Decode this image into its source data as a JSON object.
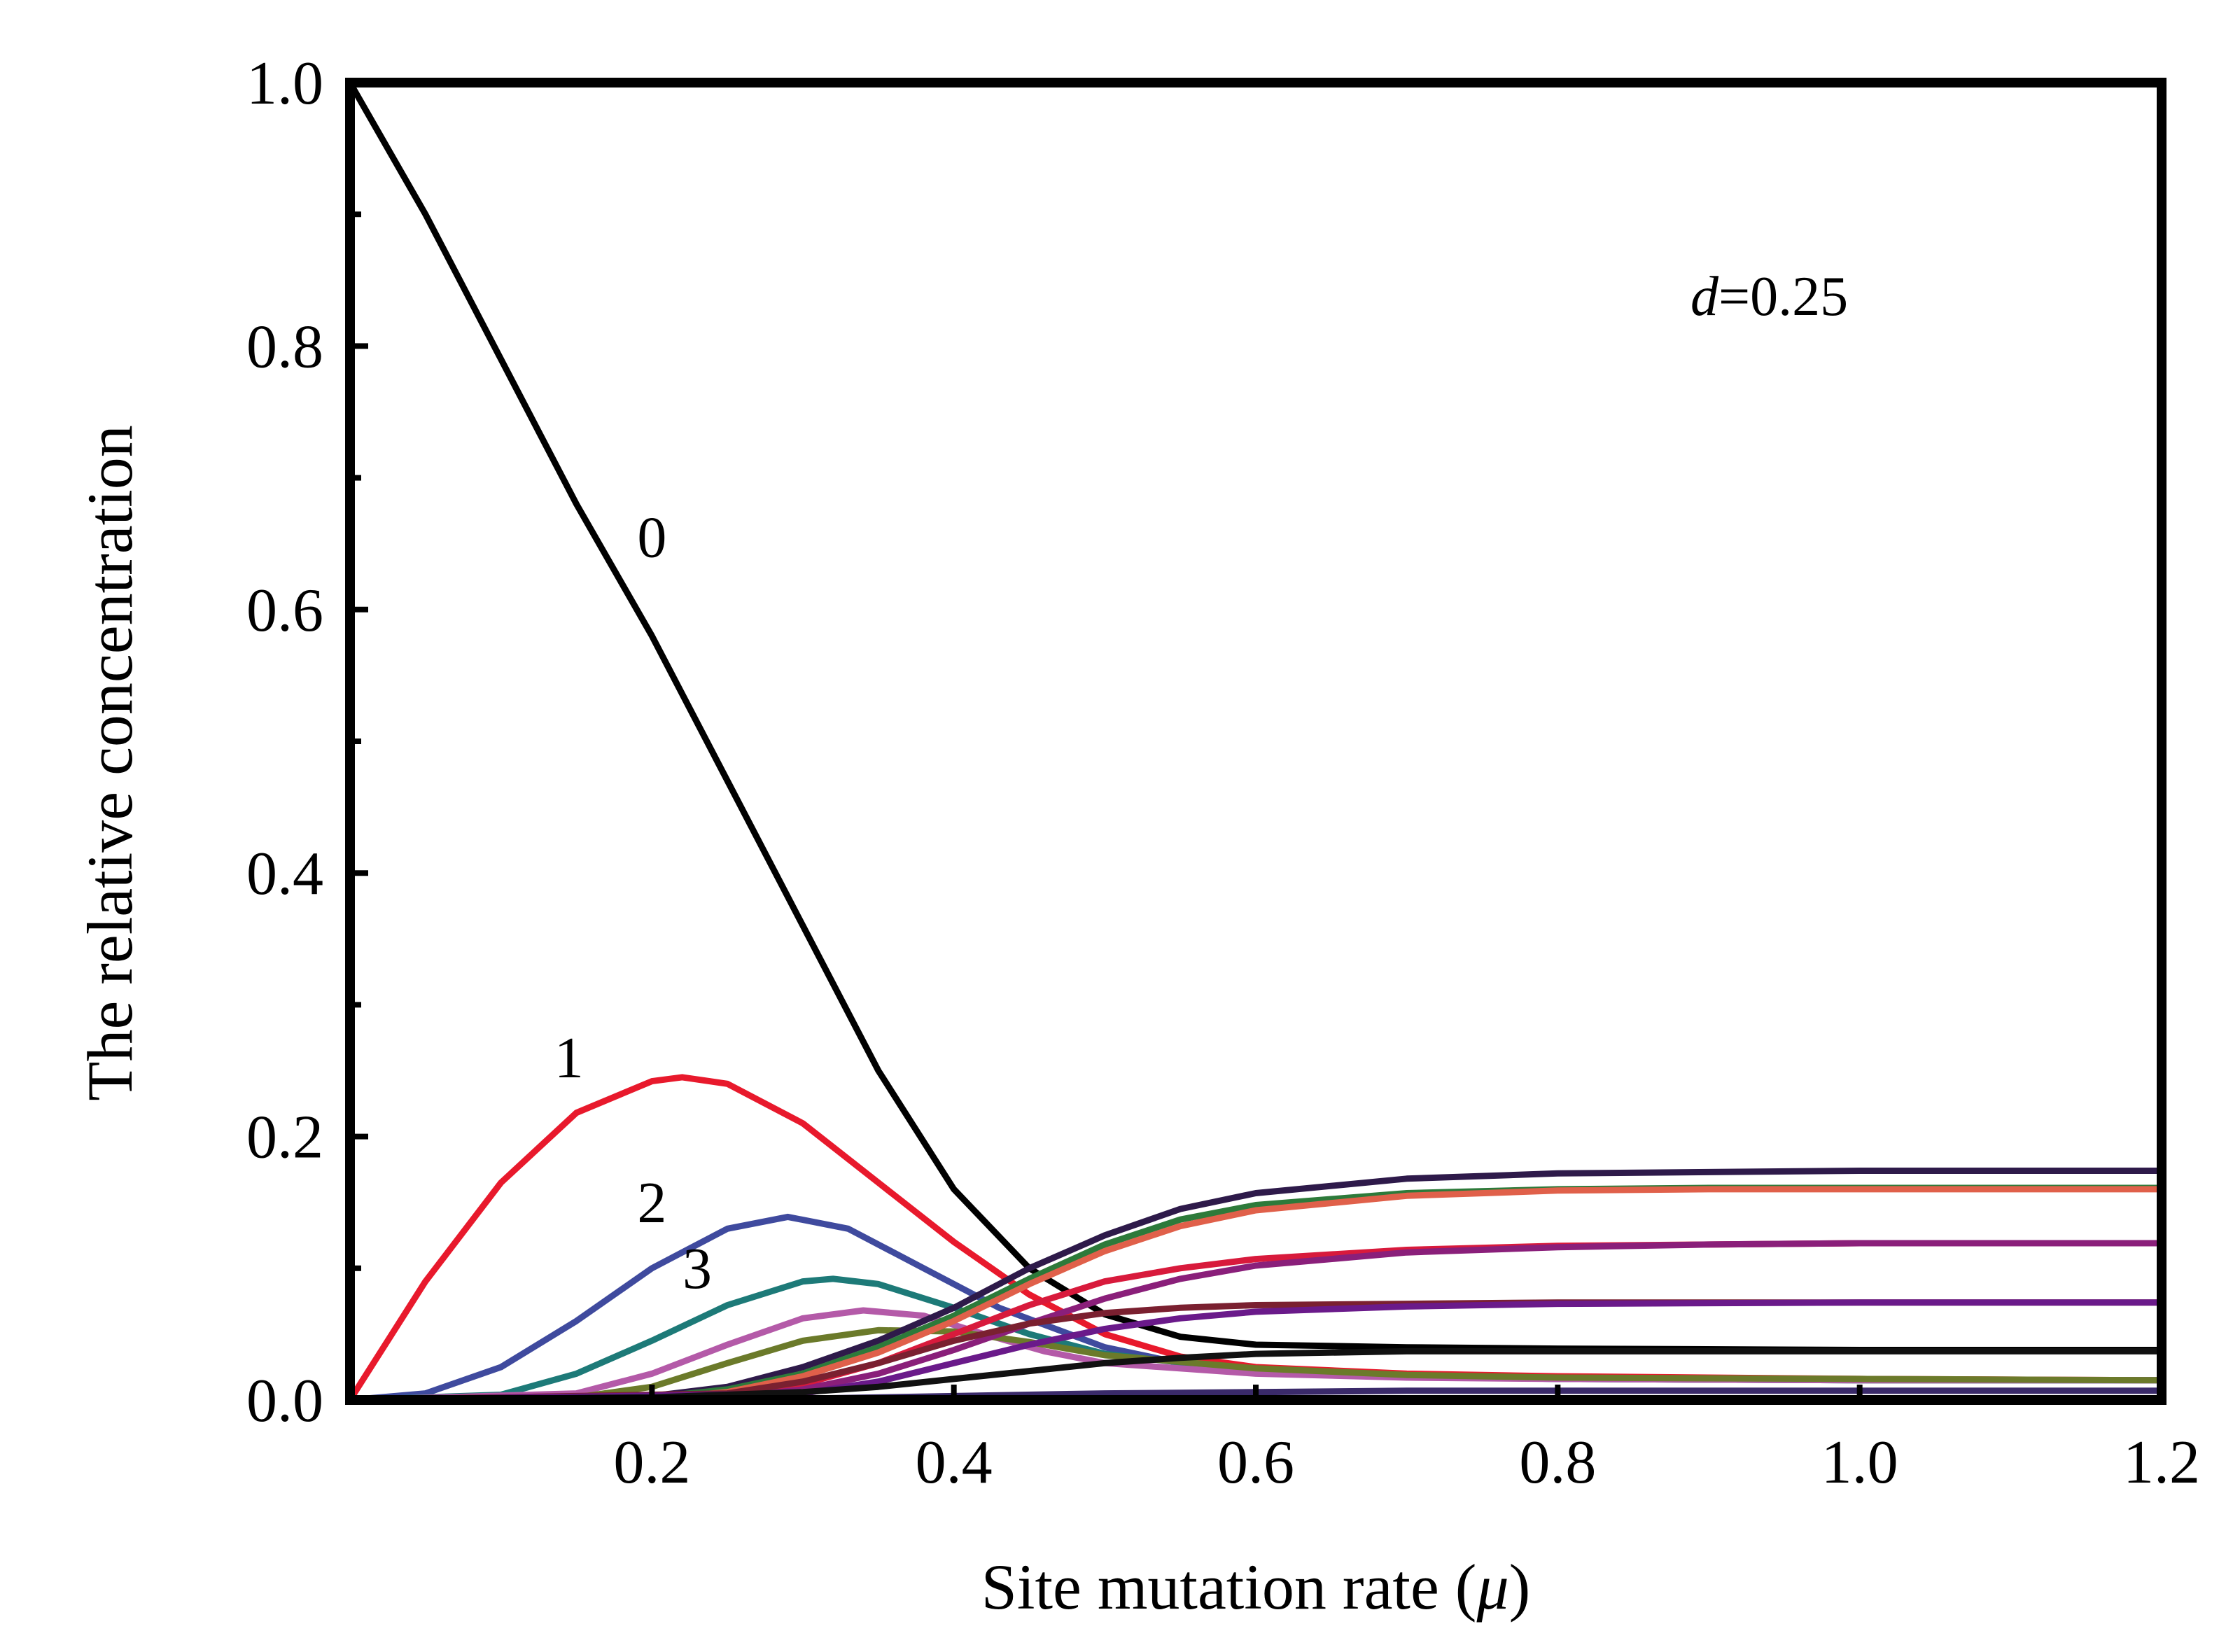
{
  "chart_data": {
    "type": "line",
    "xlabel": "Site mutation rate (",
    "xlabel_symbol": "μ",
    "xlabel_close": ")",
    "ylabel": "The relative concentration",
    "xlim": [
      0.0,
      1.2
    ],
    "ylim": [
      0.0,
      1.0
    ],
    "x_ticks": [
      {
        "value": 0.2,
        "label": "0.2"
      },
      {
        "value": 0.4,
        "label": "0.4"
      },
      {
        "value": 0.6,
        "label": "0.6"
      },
      {
        "value": 0.8,
        "label": "0.8"
      },
      {
        "value": 1.0,
        "label": "1.0"
      },
      {
        "value": 1.2,
        "label": "1.2"
      }
    ],
    "y_ticks": [
      {
        "value": 0.0,
        "label": "0.0"
      },
      {
        "value": 0.2,
        "label": "0.2"
      },
      {
        "value": 0.4,
        "label": "0.4"
      },
      {
        "value": 0.6,
        "label": "0.6"
      },
      {
        "value": 0.8,
        "label": "0.8"
      },
      {
        "value": 1.0,
        "label": "1.0"
      }
    ],
    "y_minor_ticks": [
      0.1,
      0.3,
      0.5,
      0.7,
      0.9
    ],
    "grid": false,
    "annotation": {
      "symbol": "d",
      "text": "=0.25"
    },
    "curve_labels": [
      {
        "text": "0",
        "x": 0.2,
        "y": 0.64
      },
      {
        "text": "1",
        "x": 0.145,
        "y": 0.245
      },
      {
        "text": "2",
        "x": 0.2,
        "y": 0.135
      },
      {
        "text": "3",
        "x": 0.23,
        "y": 0.085
      }
    ],
    "series": [
      {
        "color": "#000000",
        "x": [
          0,
          0.05,
          0.1,
          0.15,
          0.2,
          0.25,
          0.3,
          0.35,
          0.4,
          0.45,
          0.5,
          0.55,
          0.6,
          0.7,
          0.8,
          1.0,
          1.2
        ],
        "y": [
          1.0,
          0.9,
          0.79,
          0.68,
          0.58,
          0.47,
          0.36,
          0.25,
          0.16,
          0.1,
          0.065,
          0.048,
          0.042,
          0.04,
          0.039,
          0.038,
          0.038
        ]
      },
      {
        "color": "#e8192c",
        "x": [
          0,
          0.05,
          0.1,
          0.15,
          0.2,
          0.22,
          0.25,
          0.3,
          0.35,
          0.4,
          0.45,
          0.5,
          0.55,
          0.6,
          0.7,
          0.8,
          1.0,
          1.2
        ],
        "y": [
          0,
          0.09,
          0.165,
          0.218,
          0.242,
          0.245,
          0.24,
          0.21,
          0.165,
          0.12,
          0.08,
          0.05,
          0.033,
          0.025,
          0.02,
          0.018,
          0.016,
          0.015
        ]
      },
      {
        "color": "#3f4a9e",
        "x": [
          0,
          0.05,
          0.1,
          0.15,
          0.2,
          0.25,
          0.29,
          0.33,
          0.38,
          0.43,
          0.5,
          0.55,
          0.6,
          0.7,
          0.8,
          1.0,
          1.2
        ],
        "y": [
          0,
          0.005,
          0.025,
          0.06,
          0.1,
          0.13,
          0.139,
          0.13,
          0.1,
          0.07,
          0.04,
          0.028,
          0.022,
          0.018,
          0.016,
          0.015,
          0.015
        ]
      },
      {
        "color": "#1d7a78",
        "x": [
          0,
          0.1,
          0.15,
          0.2,
          0.25,
          0.3,
          0.32,
          0.35,
          0.4,
          0.45,
          0.5,
          0.6,
          0.7,
          0.8,
          1.0,
          1.2
        ],
        "y": [
          0,
          0.004,
          0.02,
          0.045,
          0.072,
          0.09,
          0.092,
          0.088,
          0.07,
          0.05,
          0.035,
          0.022,
          0.018,
          0.016,
          0.015,
          0.015
        ]
      },
      {
        "color": "#b45aa8",
        "x": [
          0,
          0.15,
          0.2,
          0.25,
          0.3,
          0.34,
          0.38,
          0.42,
          0.46,
          0.5,
          0.6,
          0.7,
          0.8,
          1.0,
          1.2
        ],
        "y": [
          0,
          0.005,
          0.02,
          0.042,
          0.062,
          0.068,
          0.064,
          0.05,
          0.037,
          0.028,
          0.02,
          0.017,
          0.016,
          0.015,
          0.015
        ]
      },
      {
        "color": "#6b7a2a",
        "x": [
          0,
          0.15,
          0.2,
          0.25,
          0.3,
          0.35,
          0.4,
          0.45,
          0.5,
          0.6,
          0.7,
          0.8,
          1.0,
          1.2
        ],
        "y": [
          0,
          0.002,
          0.01,
          0.028,
          0.045,
          0.053,
          0.052,
          0.044,
          0.034,
          0.024,
          0.019,
          0.017,
          0.016,
          0.015
        ]
      },
      {
        "color": "#2e1a4a",
        "x": [
          0,
          0.2,
          0.25,
          0.3,
          0.35,
          0.4,
          0.45,
          0.5,
          0.55,
          0.6,
          0.7,
          0.8,
          0.9,
          1.0,
          1.2
        ],
        "y": [
          0,
          0.003,
          0.01,
          0.025,
          0.045,
          0.07,
          0.1,
          0.125,
          0.145,
          0.157,
          0.168,
          0.172,
          0.173,
          0.174,
          0.174
        ]
      },
      {
        "color": "#2d7a3a",
        "x": [
          0,
          0.2,
          0.25,
          0.3,
          0.35,
          0.4,
          0.45,
          0.5,
          0.55,
          0.6,
          0.7,
          0.8,
          0.9,
          1.0,
          1.2
        ],
        "y": [
          0,
          0.002,
          0.008,
          0.02,
          0.04,
          0.064,
          0.092,
          0.118,
          0.137,
          0.148,
          0.157,
          0.16,
          0.161,
          0.161,
          0.161
        ]
      },
      {
        "color": "#e0604a",
        "x": [
          0,
          0.2,
          0.25,
          0.3,
          0.35,
          0.4,
          0.45,
          0.5,
          0.55,
          0.6,
          0.7,
          0.8,
          0.9,
          1.0,
          1.2
        ],
        "y": [
          0,
          0.001,
          0.006,
          0.018,
          0.036,
          0.06,
          0.088,
          0.113,
          0.132,
          0.144,
          0.155,
          0.159,
          0.16,
          0.16,
          0.16
        ]
      },
      {
        "color": "#d81a3c",
        "x": [
          0,
          0.25,
          0.3,
          0.35,
          0.4,
          0.45,
          0.5,
          0.55,
          0.6,
          0.7,
          0.8,
          0.9,
          1.0,
          1.2
        ],
        "y": [
          0,
          0.004,
          0.012,
          0.028,
          0.05,
          0.072,
          0.09,
          0.1,
          0.107,
          0.114,
          0.117,
          0.118,
          0.119,
          0.119
        ]
      },
      {
        "color": "#8a1f7a",
        "x": [
          0,
          0.25,
          0.3,
          0.35,
          0.4,
          0.45,
          0.5,
          0.55,
          0.6,
          0.7,
          0.8,
          0.9,
          1.0,
          1.2
        ],
        "y": [
          0,
          0.002,
          0.008,
          0.02,
          0.038,
          0.058,
          0.077,
          0.092,
          0.102,
          0.112,
          0.116,
          0.118,
          0.119,
          0.119
        ]
      },
      {
        "color": "#7a2030",
        "x": [
          0,
          0.25,
          0.3,
          0.35,
          0.4,
          0.45,
          0.5,
          0.55,
          0.6,
          0.7,
          0.8,
          1.0,
          1.2
        ],
        "y": [
          0,
          0.005,
          0.014,
          0.028,
          0.045,
          0.058,
          0.066,
          0.07,
          0.072,
          0.073,
          0.074,
          0.074,
          0.074
        ]
      },
      {
        "color": "#6a1a8a",
        "x": [
          0,
          0.3,
          0.35,
          0.4,
          0.45,
          0.5,
          0.55,
          0.6,
          0.7,
          0.8,
          1.0,
          1.2
        ],
        "y": [
          0,
          0.005,
          0.014,
          0.028,
          0.042,
          0.054,
          0.062,
          0.067,
          0.071,
          0.073,
          0.074,
          0.074
        ]
      },
      {
        "color": "#111111",
        "x": [
          0,
          0.2,
          0.3,
          0.35,
          0.4,
          0.45,
          0.5,
          0.55,
          0.6,
          0.7,
          0.8,
          1.0,
          1.2
        ],
        "y": [
          0,
          0.002,
          0.006,
          0.01,
          0.016,
          0.022,
          0.028,
          0.032,
          0.035,
          0.037,
          0.037,
          0.037,
          0.037
        ]
      },
      {
        "color": "#3a2a6a",
        "x": [
          0,
          0.3,
          0.4,
          0.5,
          0.6,
          0.7,
          0.8,
          1.0,
          1.2
        ],
        "y": [
          0,
          0.001,
          0.003,
          0.005,
          0.006,
          0.007,
          0.007,
          0.007,
          0.007
        ]
      }
    ]
  }
}
